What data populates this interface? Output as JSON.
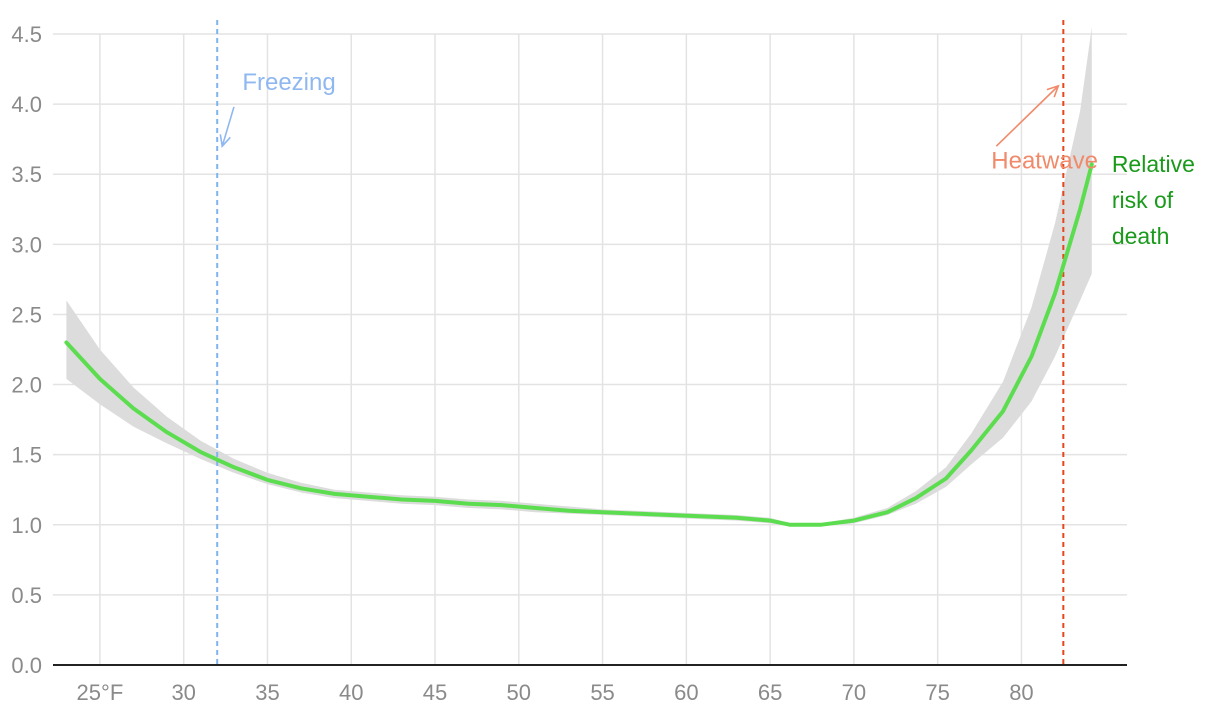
{
  "chart_data": {
    "type": "line",
    "xlim": [
      22.2,
      86.3
    ],
    "ylim": [
      0,
      4.5
    ],
    "x_ticks": [
      25,
      30,
      35,
      40,
      45,
      50,
      55,
      60,
      65,
      70,
      75,
      80
    ],
    "x_tick_labels": [
      "25°F",
      "30",
      "35",
      "40",
      "45",
      "50",
      "55",
      "60",
      "65",
      "70",
      "75",
      "80"
    ],
    "y_ticks": [
      0,
      0.5,
      1,
      1.5,
      2,
      2.5,
      3,
      3.5,
      4,
      4.5
    ],
    "y_tick_labels": [
      "0.0",
      "0.5",
      "1.0",
      "1.5",
      "2.0",
      "2.5",
      "3.0",
      "3.5",
      "4.0",
      "4.5"
    ],
    "grid": true,
    "series": [
      {
        "name": "Relative risk of death",
        "label_lines": [
          "Relative",
          "risk of",
          "death"
        ],
        "color": "#5cdd4f",
        "x": [
          23,
          25,
          27,
          29,
          31,
          33,
          35,
          37,
          39,
          41,
          43,
          45,
          47,
          49,
          51,
          53,
          55,
          57,
          59,
          61,
          63,
          65,
          66.2,
          68,
          70,
          72,
          73.7,
          75.5,
          77,
          78.9,
          80.6,
          82,
          83.5,
          84.2
        ],
        "y": [
          2.3,
          2.04,
          1.83,
          1.66,
          1.52,
          1.41,
          1.32,
          1.26,
          1.22,
          1.2,
          1.18,
          1.17,
          1.15,
          1.14,
          1.12,
          1.1,
          1.09,
          1.08,
          1.07,
          1.06,
          1.05,
          1.03,
          1.0,
          1.0,
          1.03,
          1.09,
          1.19,
          1.33,
          1.53,
          1.81,
          2.2,
          2.65,
          3.25,
          3.57
        ]
      }
    ],
    "confidence_band": {
      "color": "#dcdcdc",
      "x": [
        23,
        25,
        27,
        29,
        31,
        33,
        35,
        37,
        39,
        41,
        43,
        45,
        47,
        49,
        51,
        53,
        55,
        57,
        59,
        61,
        63,
        65,
        66.2,
        68,
        70,
        72,
        73.7,
        75.5,
        77,
        78.9,
        80.6,
        82,
        83.5,
        84.2
      ],
      "lower": [
        2.04,
        1.86,
        1.7,
        1.58,
        1.47,
        1.37,
        1.29,
        1.23,
        1.19,
        1.17,
        1.15,
        1.14,
        1.12,
        1.11,
        1.09,
        1.08,
        1.07,
        1.06,
        1.05,
        1.04,
        1.03,
        1.01,
        0.99,
        0.99,
        1.01,
        1.07,
        1.15,
        1.27,
        1.43,
        1.62,
        1.88,
        2.2,
        2.6,
        2.79
      ],
      "upper": [
        2.6,
        2.25,
        1.98,
        1.77,
        1.6,
        1.47,
        1.37,
        1.3,
        1.25,
        1.23,
        1.21,
        1.2,
        1.18,
        1.17,
        1.15,
        1.13,
        1.11,
        1.1,
        1.09,
        1.08,
        1.07,
        1.05,
        1.01,
        1.01,
        1.05,
        1.12,
        1.24,
        1.41,
        1.65,
        2.02,
        2.55,
        3.15,
        3.95,
        4.55
      ]
    },
    "reference_lines": [
      {
        "name": "Freezing",
        "x": 32,
        "color": "#7fb4ee",
        "style": "dashed"
      },
      {
        "name": "Heatwave",
        "x": 82.5,
        "color": "#e5461c",
        "style": "dashed"
      }
    ],
    "annotations": [
      {
        "text": "Freezing",
        "color": "#90b8f0",
        "arrow_color": "#90b8f0",
        "text_x": 33.5,
        "text_y": 4.1,
        "arrow_from": [
          33,
          3.98
        ],
        "arrow_to": [
          32.3,
          3.7
        ]
      },
      {
        "text": "Heatwave",
        "color": "#f08a6a",
        "arrow_color": "#f08a6a",
        "text_x": 78.2,
        "text_y": 3.54,
        "arrow_from": [
          78.5,
          3.7
        ],
        "arrow_to": [
          82.2,
          4.13
        ]
      }
    ],
    "title": "",
    "xlabel": "",
    "ylabel": ""
  }
}
